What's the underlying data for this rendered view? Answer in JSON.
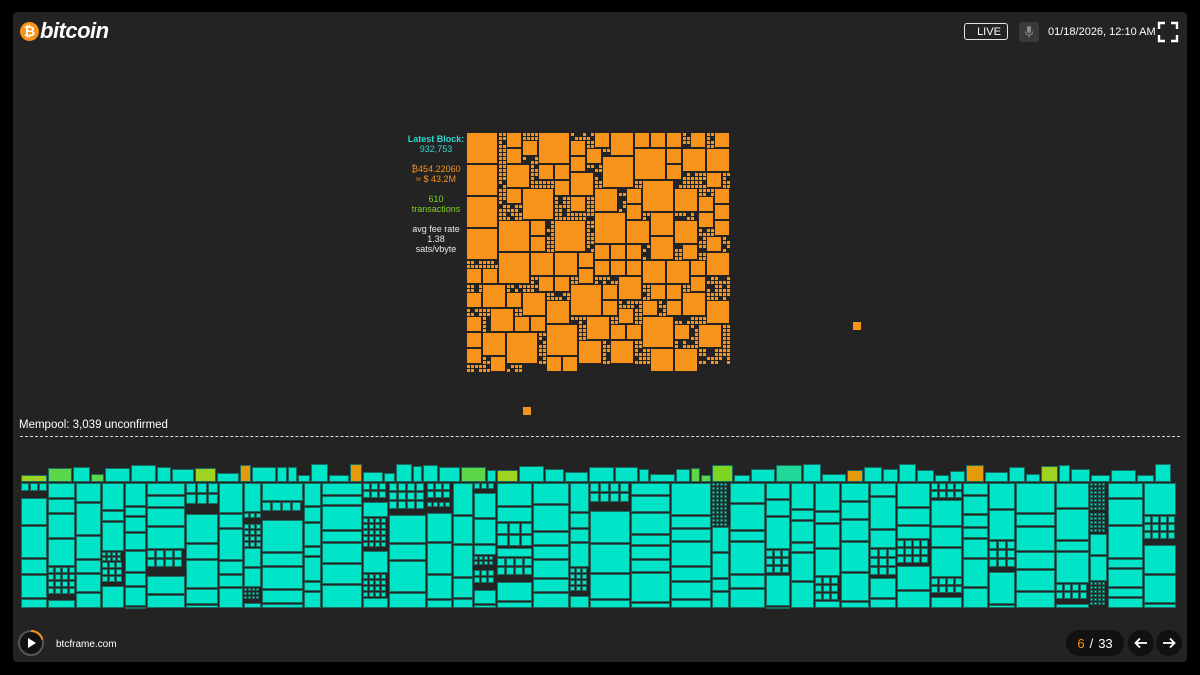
{
  "header": {
    "logo_symbol": "₿",
    "logo_text": "bitcoin",
    "live_label": "LIVE",
    "mic_icon": "mic-icon",
    "datetime": "01/18/2026, 12:10 AM",
    "fullscreen_icon": "fullscreen-icon"
  },
  "block": {
    "label": "Latest Block:",
    "number": "932,753",
    "btc_value": "₿454.22060",
    "usd_value": "≈ $ 43.2M",
    "tx_count": "610",
    "tx_label": "transactions",
    "fee_label": "avg fee rate",
    "fee_value": "1.38",
    "fee_unit": "sats/vbyte"
  },
  "mempool": {
    "title": "Mempool: 3,039 unconfirmed"
  },
  "footer": {
    "play_icon": "play-icon",
    "site": "btcframe.com",
    "page_current": "6",
    "page_sep": "/",
    "page_total": "33",
    "prev_icon": "arrow-left-icon",
    "next_icon": "arrow-right-icon"
  },
  "colors": {
    "background": "#232324",
    "block_tx": "#f7931a",
    "mempool_tx": "#00e5c8",
    "mempool_high_fee_green": "#7fd321",
    "accent_teal": "#30d8cf"
  }
}
